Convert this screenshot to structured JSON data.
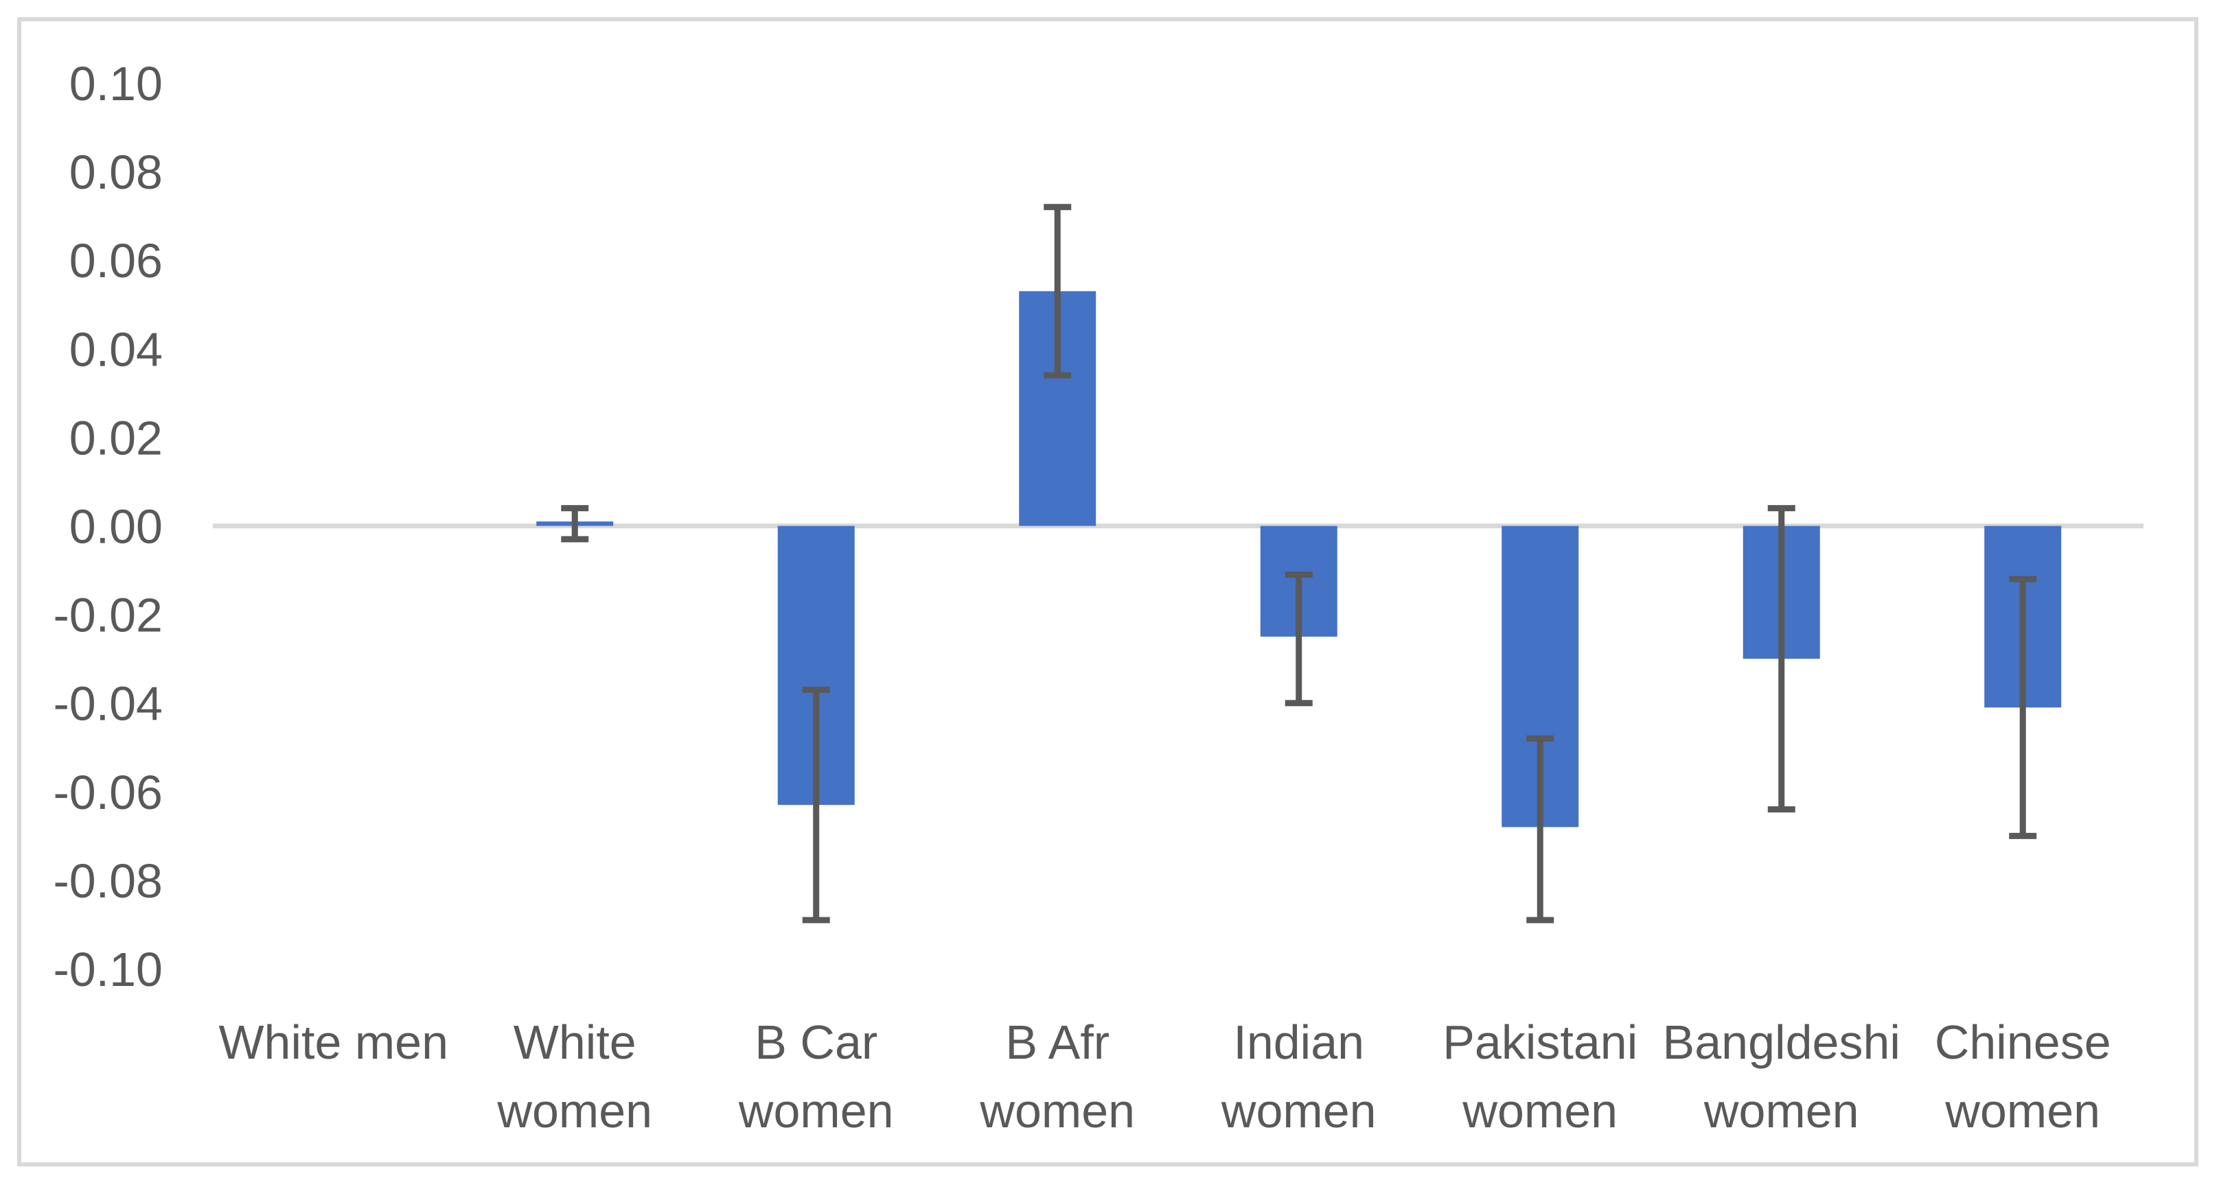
{
  "chart_data": {
    "type": "bar",
    "title": "",
    "xlabel": "",
    "ylabel": "",
    "legend": "none",
    "grid": "zero-line-only",
    "ylim": [
      -0.1,
      0.1
    ],
    "ytick_step": 0.02,
    "ytick_labels": [
      "0.10",
      "0.08",
      "0.06",
      "0.04",
      "0.02",
      "0.00",
      "-0.02",
      "-0.04",
      "-0.06",
      "-0.08",
      "-0.10"
    ],
    "ytick_values": [
      0.1,
      0.08,
      0.06,
      0.04,
      0.02,
      0.0,
      -0.02,
      -0.04,
      -0.06,
      -0.08,
      -0.1
    ],
    "categories": [
      "White men",
      "White women",
      "B Car women",
      "B Afr women",
      "Indian women",
      "Pakistani women",
      "Bangldeshi women",
      "Chinese women"
    ],
    "category_label_lines": [
      [
        "White men"
      ],
      [
        "White",
        "women"
      ],
      [
        "B Car",
        "women"
      ],
      [
        "B Afr",
        "women"
      ],
      [
        "Indian",
        "women"
      ],
      [
        "Pakistani",
        "women"
      ],
      [
        "Bangldeshi",
        "women"
      ],
      [
        "Chinese",
        "women"
      ]
    ],
    "values": [
      null,
      0.001,
      -0.063,
      0.053,
      -0.025,
      -0.068,
      -0.03,
      -0.041
    ],
    "error_bars": [
      null,
      {
        "low": -0.003,
        "high": 0.004
      },
      {
        "low": -0.089,
        "high": -0.037
      },
      {
        "low": 0.034,
        "high": 0.072
      },
      {
        "low": -0.04,
        "high": -0.011
      },
      {
        "low": -0.089,
        "high": -0.048
      },
      {
        "low": -0.064,
        "high": 0.004
      },
      {
        "low": -0.07,
        "high": -0.012
      }
    ],
    "colors": {
      "bar_fill": "#4472C4",
      "error_bar": "#595959",
      "zero_line": "#D9D9D9",
      "axis_text": "#595959",
      "frame_border": "#D9D9D9",
      "background": "#FFFFFF"
    }
  }
}
